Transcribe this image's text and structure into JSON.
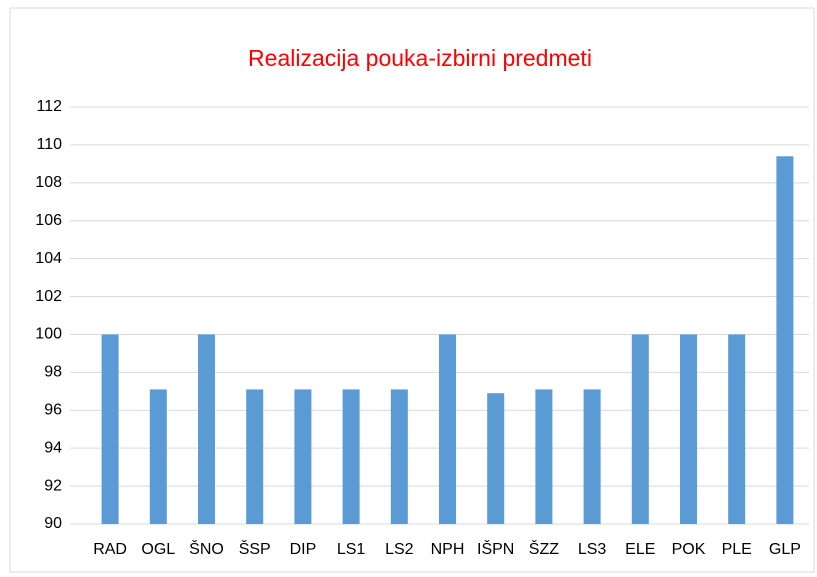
{
  "chart_data": {
    "type": "bar",
    "title": "Realizacija pouka-izbirni predmeti",
    "categories": [
      "RAD",
      "OGL",
      "ŠNO",
      "ŠSP",
      "DIP",
      "LS1",
      "LS2",
      "NPH",
      "IŠPN",
      "ŠZZ",
      "LS3",
      "ELE",
      "POK",
      "PLE",
      "GLP"
    ],
    "values": [
      100,
      97.1,
      100,
      97.1,
      97.1,
      97.1,
      97.1,
      100,
      96.9,
      97.1,
      97.1,
      100,
      100,
      100,
      109.4
    ],
    "color": "#5b9bd5",
    "title_color": "#ff0000",
    "category_color": "#ff0000",
    "ylim": [
      90,
      112
    ],
    "yticks": [
      90,
      92,
      94,
      96,
      98,
      100,
      102,
      104,
      106,
      108,
      110,
      112
    ],
    "grid": true
  }
}
